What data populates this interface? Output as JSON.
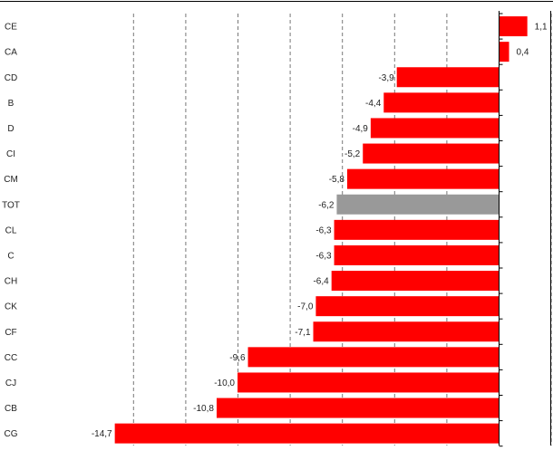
{
  "chart_data": {
    "type": "bar",
    "orientation": "horizontal",
    "categories": [
      "CE",
      "CA",
      "CD",
      "B",
      "D",
      "CI",
      "CM",
      "TOT",
      "CL",
      "C",
      "CH",
      "CK",
      "CF",
      "CC",
      "CJ",
      "CB",
      "CG"
    ],
    "values": [
      1.1,
      0.4,
      -3.9,
      -4.4,
      -4.9,
      -5.2,
      -5.8,
      -6.2,
      -6.3,
      -6.3,
      -6.4,
      -7.0,
      -7.1,
      -9.6,
      -10.0,
      -10.8,
      -14.7
    ],
    "value_labels": [
      "1,1",
      "0,4",
      "-3,9",
      "-4,4",
      "-4,9",
      "-5,2",
      "-5,8",
      "-6,2",
      "-6,3",
      "-6,3",
      "-6,4",
      "-7,0",
      "-7,1",
      "-9,6",
      "-10,0",
      "-10,8",
      "-14,7"
    ],
    "highlight_category": "TOT",
    "colors": {
      "bar": "#ff0000",
      "highlight": "#999999",
      "grid": "#777777",
      "axis": "#000000"
    },
    "xlim": [
      -16,
      2
    ],
    "gridlines": "vertical-dashed",
    "legend": "none",
    "title": "",
    "xlabel": "",
    "ylabel": ""
  }
}
